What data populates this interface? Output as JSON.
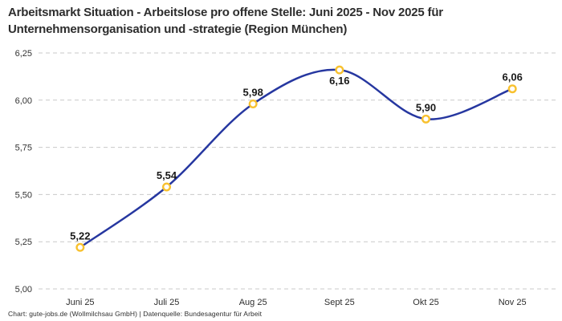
{
  "header": {
    "title_line1": "Arbeitsmarkt Situation - Arbeitslose pro offene Stelle: Juni 2025 - Nov 2025 für",
    "title_line2": "Unternehmensorganisation und -strategie (Region München)"
  },
  "footer": {
    "credit": "Chart: gute-jobs.de (Wollmilchsau GmbH) | Datenquelle: Bundesagentur für Arbeit"
  },
  "colors": {
    "line": "#2637a0",
    "marker_ring": "#f8c12f",
    "marker_fill": "#ffffff",
    "grid": "#c9c9c9",
    "title_text": "#2d2d2d",
    "tick_text": "#333333",
    "label_text": "#191919",
    "background": "#ffffff"
  },
  "chart_data": {
    "type": "line",
    "title": "Arbeitsmarkt Situation - Arbeitslose pro offene Stelle: Juni 2025 - Nov 2025 für Unternehmensorganisation und -strategie (Region München)",
    "categories": [
      "Juni 25",
      "Juli 25",
      "Aug 25",
      "Sept 25",
      "Okt 25",
      "Nov 25"
    ],
    "values": [
      5.22,
      5.54,
      5.98,
      6.16,
      5.9,
      6.06
    ],
    "point_labels": [
      "5,22",
      "5,54",
      "5,98",
      "6,16",
      "5,90",
      "6,06"
    ],
    "label_positions": [
      "above",
      "above",
      "above",
      "below",
      "above",
      "above"
    ],
    "xlabel": "",
    "ylabel": "",
    "ylim": [
      5.0,
      6.25
    ],
    "yticks": [
      5.0,
      5.25,
      5.5,
      5.75,
      6.0,
      6.25
    ],
    "ytick_labels": [
      "5,00",
      "5,25",
      "5,50",
      "5,75",
      "6,00",
      "6,25"
    ],
    "grid": "horizontal-dashed",
    "legend": "none",
    "smooth": true,
    "marker_style": "hollow-circle"
  }
}
